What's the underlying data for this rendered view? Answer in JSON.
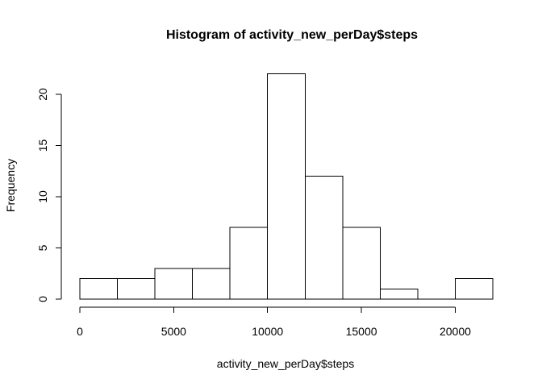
{
  "chart_data": {
    "type": "bar",
    "subtype": "histogram",
    "title": "Histogram of activity_new_perDay$steps",
    "xlabel": "activity_new_perDay$steps",
    "ylabel": "Frequency",
    "bin_edges": [
      0,
      2000,
      4000,
      6000,
      8000,
      10000,
      12000,
      14000,
      16000,
      18000,
      20000,
      22000
    ],
    "values": [
      2,
      2,
      3,
      3,
      7,
      22,
      12,
      7,
      1,
      0,
      2
    ],
    "xlim": [
      0,
      22000
    ],
    "ylim": [
      0,
      22
    ],
    "x_ticks": [
      0,
      5000,
      10000,
      15000,
      20000
    ],
    "x_tick_labels": [
      "0",
      "5000",
      "10000",
      "15000",
      "20000"
    ],
    "y_ticks": [
      0,
      5,
      10,
      15,
      20
    ],
    "y_tick_labels": [
      "0",
      "5",
      "10",
      "15",
      "20"
    ],
    "bar_fill": "#ffffff",
    "bar_stroke": "#000000",
    "grid": false,
    "legend": false
  }
}
